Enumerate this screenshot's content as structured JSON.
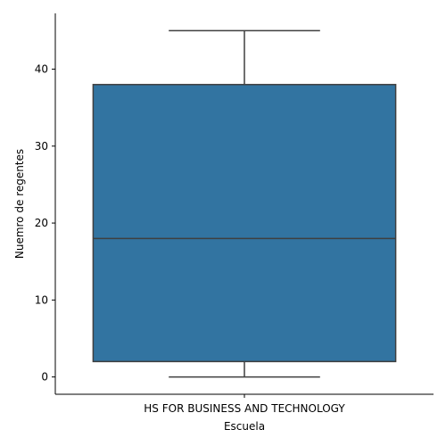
{
  "chart_data": {
    "type": "box",
    "title": "",
    "xlabel": "Escuela",
    "ylabel": "Nuemro de regentes",
    "categories": [
      "HS FOR BUSINESS AND TECHNOLOGY"
    ],
    "boxes": [
      {
        "category": "HS FOR BUSINESS AND TECHNOLOGY",
        "min": 0,
        "q1": 2,
        "median": 18,
        "q3": 38,
        "max": 45
      }
    ],
    "ylim": [
      -2.25,
      47.25
    ],
    "yticks": [
      0,
      10,
      20,
      30,
      40
    ],
    "grid": false,
    "box_color": "#3274a1",
    "line_color": "#3f3f3f"
  }
}
